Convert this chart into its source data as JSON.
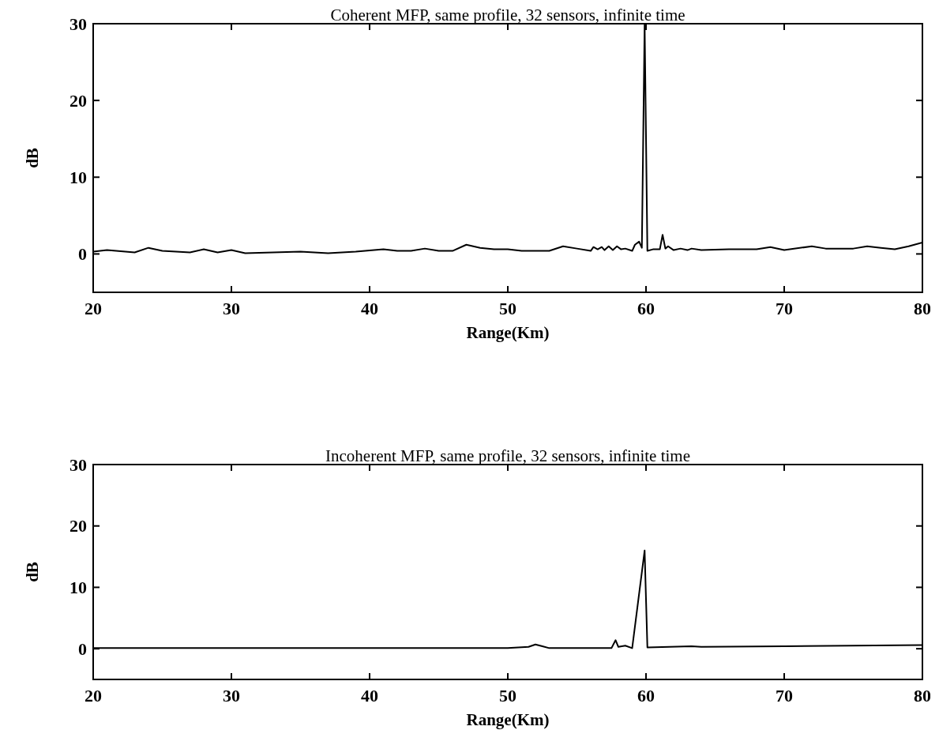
{
  "chart_data": [
    {
      "type": "line",
      "title": "Coherent MFP, same profile, 32 sensors, infinite time",
      "xlabel": "Range(Km)",
      "ylabel": "dB",
      "xlim": [
        20,
        80
      ],
      "xticks": [
        20,
        30,
        40,
        50,
        60,
        70,
        80
      ],
      "ylim": [
        -5,
        30
      ],
      "yticks": [
        0,
        10,
        20,
        30
      ],
      "series": [
        {
          "color": "#000000",
          "x": [
            20,
            21,
            23,
            24,
            25,
            27,
            28,
            29,
            30,
            31,
            33,
            35,
            37,
            39,
            41,
            42,
            43,
            44,
            45,
            46,
            47,
            48,
            49,
            50,
            51,
            53,
            54,
            55,
            56,
            56.2,
            56.5,
            56.8,
            57,
            57.3,
            57.6,
            57.9,
            58.2,
            58.5,
            59,
            59.2,
            59.5,
            59.7,
            59.9,
            60.1,
            60.5,
            61,
            61.2,
            61.4,
            61.6,
            62,
            62.5,
            63,
            63.3,
            64,
            66,
            68,
            69,
            70,
            72,
            73,
            75,
            76,
            77,
            78,
            79,
            80
          ],
          "values": [
            0.3,
            0.5,
            0.2,
            0.8,
            0.4,
            0.2,
            0.6,
            0.2,
            0.5,
            0.1,
            0.2,
            0.3,
            0.1,
            0.3,
            0.6,
            0.4,
            0.4,
            0.7,
            0.4,
            0.4,
            1.2,
            0.8,
            0.6,
            0.6,
            0.4,
            0.4,
            1.0,
            0.7,
            0.4,
            0.9,
            0.6,
            0.9,
            0.5,
            1.0,
            0.5,
            1.0,
            0.6,
            0.7,
            0.4,
            1.2,
            1.6,
            0.8,
            30,
            0.4,
            0.6,
            0.6,
            2.5,
            0.7,
            1.0,
            0.5,
            0.7,
            0.5,
            0.7,
            0.5,
            0.6,
            0.6,
            0.9,
            0.5,
            1.0,
            0.7,
            0.7,
            1.0,
            0.8,
            0.6,
            1.0,
            1.5
          ]
        }
      ]
    },
    {
      "type": "line",
      "title": "Incoherent MFP, same profile, 32 sensors, infinite time",
      "xlabel": "Range(Km)",
      "ylabel": "dB",
      "xlim": [
        20,
        80
      ],
      "xticks": [
        20,
        30,
        40,
        50,
        60,
        70,
        80
      ],
      "ylim": [
        -5,
        30
      ],
      "yticks": [
        0,
        10,
        20,
        30
      ],
      "series": [
        {
          "color": "#000000",
          "x": [
            20,
            40,
            50,
            51.5,
            52,
            52.5,
            53,
            57.5,
            57.8,
            58,
            58.5,
            59,
            59.9,
            60.1,
            63.3,
            64,
            70,
            80
          ],
          "values": [
            0.1,
            0.1,
            0.1,
            0.3,
            0.7,
            0.4,
            0.1,
            0.1,
            1.4,
            0.3,
            0.5,
            0.1,
            16,
            0.2,
            0.4,
            0.3,
            0.4,
            0.6
          ]
        }
      ]
    }
  ]
}
